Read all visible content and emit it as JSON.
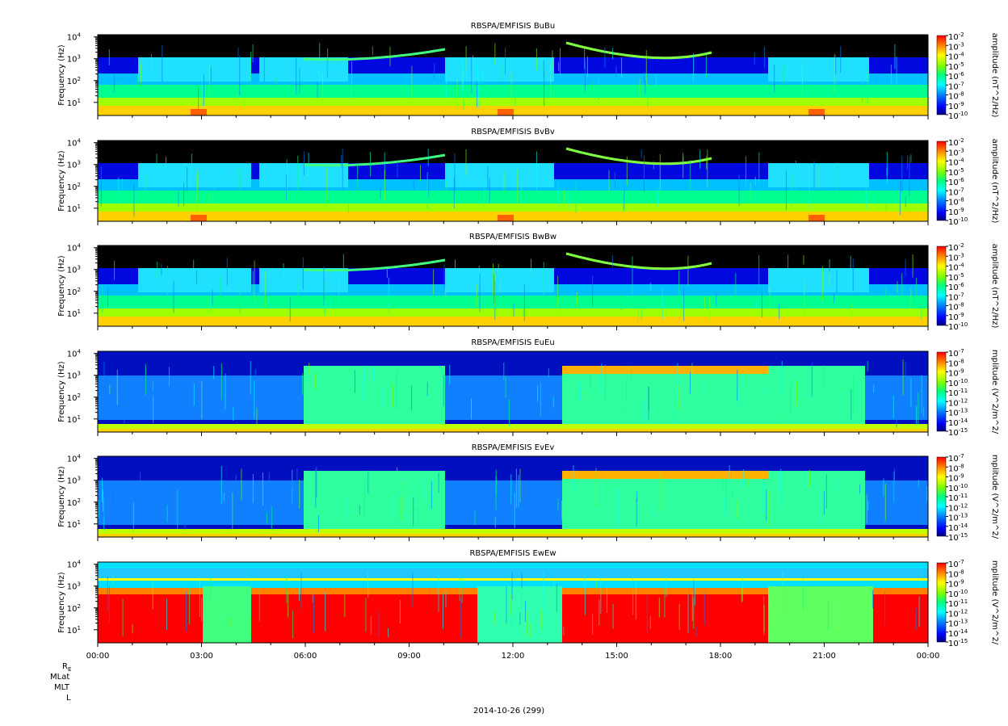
{
  "chart_data": [
    {
      "type": "heatmap",
      "title": "RBSPA/EMFISIS  BuBu",
      "ylabel": "Frequency (Hz)",
      "yscale": "log",
      "yticks": [
        "10",
        "10",
        "10",
        "10"
      ],
      "ytick_exponents": [
        "1",
        "2",
        "3",
        "4"
      ],
      "colorbar_label": "amplitude (nT^2/Hz)",
      "colorbar_ticks": [
        "10",
        "10",
        "10",
        "10",
        "10",
        "10",
        "10",
        "10",
        "10"
      ],
      "colorbar_exponents": [
        "-2",
        "-3",
        "-4",
        "-5",
        "-6",
        "-7",
        "-8",
        "-9",
        "-10"
      ],
      "colorbar_log_range": [
        -10,
        -2
      ],
      "style": "b"
    },
    {
      "type": "heatmap",
      "title": "RBSPA/EMFISIS  BvBv",
      "ylabel": "Frequency (Hz)",
      "yscale": "log",
      "yticks": [
        "10",
        "10",
        "10",
        "10"
      ],
      "ytick_exponents": [
        "1",
        "2",
        "3",
        "4"
      ],
      "colorbar_label": "amplitude (nT^2/Hz)",
      "colorbar_ticks": [
        "10",
        "10",
        "10",
        "10",
        "10",
        "10",
        "10",
        "10",
        "10"
      ],
      "colorbar_exponents": [
        "-2",
        "-3",
        "-4",
        "-5",
        "-6",
        "-7",
        "-8",
        "-9",
        "-10"
      ],
      "colorbar_log_range": [
        -10,
        -2
      ],
      "style": "b"
    },
    {
      "type": "heatmap",
      "title": "RBSPA/EMFISIS  BwBw",
      "ylabel": "Frequency (Hz)",
      "yscale": "log",
      "yticks": [
        "10",
        "10",
        "10",
        "10"
      ],
      "ytick_exponents": [
        "1",
        "2",
        "3",
        "4"
      ],
      "colorbar_label": "amplitude (nT^2/Hz)",
      "colorbar_ticks": [
        "10",
        "10",
        "10",
        "10",
        "10",
        "10",
        "10",
        "10",
        "10"
      ],
      "colorbar_exponents": [
        "-2",
        "-3",
        "-4",
        "-5",
        "-6",
        "-7",
        "-8",
        "-9",
        "-10"
      ],
      "colorbar_log_range": [
        -10,
        -2
      ],
      "style": "bw"
    },
    {
      "type": "heatmap",
      "title": "RBSPA/EMFISIS  EuEu",
      "ylabel": "Frequency (Hz)",
      "yscale": "log",
      "yticks": [
        "10",
        "10",
        "10",
        "10"
      ],
      "ytick_exponents": [
        "1",
        "2",
        "3",
        "4"
      ],
      "colorbar_label": "mplitude (V^2/m^2/",
      "colorbar_ticks": [
        "10",
        "10",
        "10",
        "10",
        "10",
        "10",
        "10",
        "10",
        "10"
      ],
      "colorbar_exponents": [
        "-7",
        "-8",
        "-9",
        "-10",
        "-11",
        "-12",
        "-13",
        "-14",
        "-15"
      ],
      "colorbar_log_range": [
        -15,
        -7
      ],
      "style": "e"
    },
    {
      "type": "heatmap",
      "title": "RBSPA/EMFISIS  EvEv",
      "ylabel": "Frequency (Hz)",
      "yscale": "log",
      "yticks": [
        "10",
        "10",
        "10",
        "10"
      ],
      "ytick_exponents": [
        "1",
        "2",
        "3",
        "4"
      ],
      "colorbar_label": "mplitude (V^2/m^2/",
      "colorbar_ticks": [
        "10",
        "10",
        "10",
        "10",
        "10",
        "10",
        "10",
        "10",
        "10"
      ],
      "colorbar_exponents": [
        "-7",
        "-8",
        "-9",
        "-10",
        "-11",
        "-12",
        "-13",
        "-14",
        "-15"
      ],
      "colorbar_log_range": [
        -15,
        -7
      ],
      "style": "e"
    },
    {
      "type": "heatmap",
      "title": "RBSPA/EMFISIS  EwEw",
      "ylabel": "Frequency (Hz)",
      "yscale": "log",
      "yticks": [
        "10",
        "10",
        "10",
        "10"
      ],
      "ytick_exponents": [
        "1",
        "2",
        "3",
        "4"
      ],
      "colorbar_label": "mplitude (V^2/m^2/",
      "colorbar_ticks": [
        "10",
        "10",
        "10",
        "10",
        "10",
        "10",
        "10",
        "10",
        "10"
      ],
      "colorbar_exponents": [
        "-7",
        "-8",
        "-9",
        "-10",
        "-11",
        "-12",
        "-13",
        "-14",
        "-15"
      ],
      "colorbar_log_range": [
        -15,
        -7
      ],
      "style": "ew"
    }
  ],
  "x_axis": {
    "tick_labels": [
      "00:00",
      "03:00",
      "06:00",
      "09:00",
      "12:00",
      "15:00",
      "18:00",
      "21:00",
      "00:00"
    ],
    "date_label": "2014-10-26 (299)",
    "ephemeris_labels": [
      "R",
      "MLat",
      "MLT",
      "L"
    ],
    "re_subscript": "E"
  },
  "colormap": [
    "#000080",
    "#0000ff",
    "#0080ff",
    "#00ffff",
    "#00ff80",
    "#80ff00",
    "#ffff00",
    "#ff8000",
    "#ff0000"
  ]
}
